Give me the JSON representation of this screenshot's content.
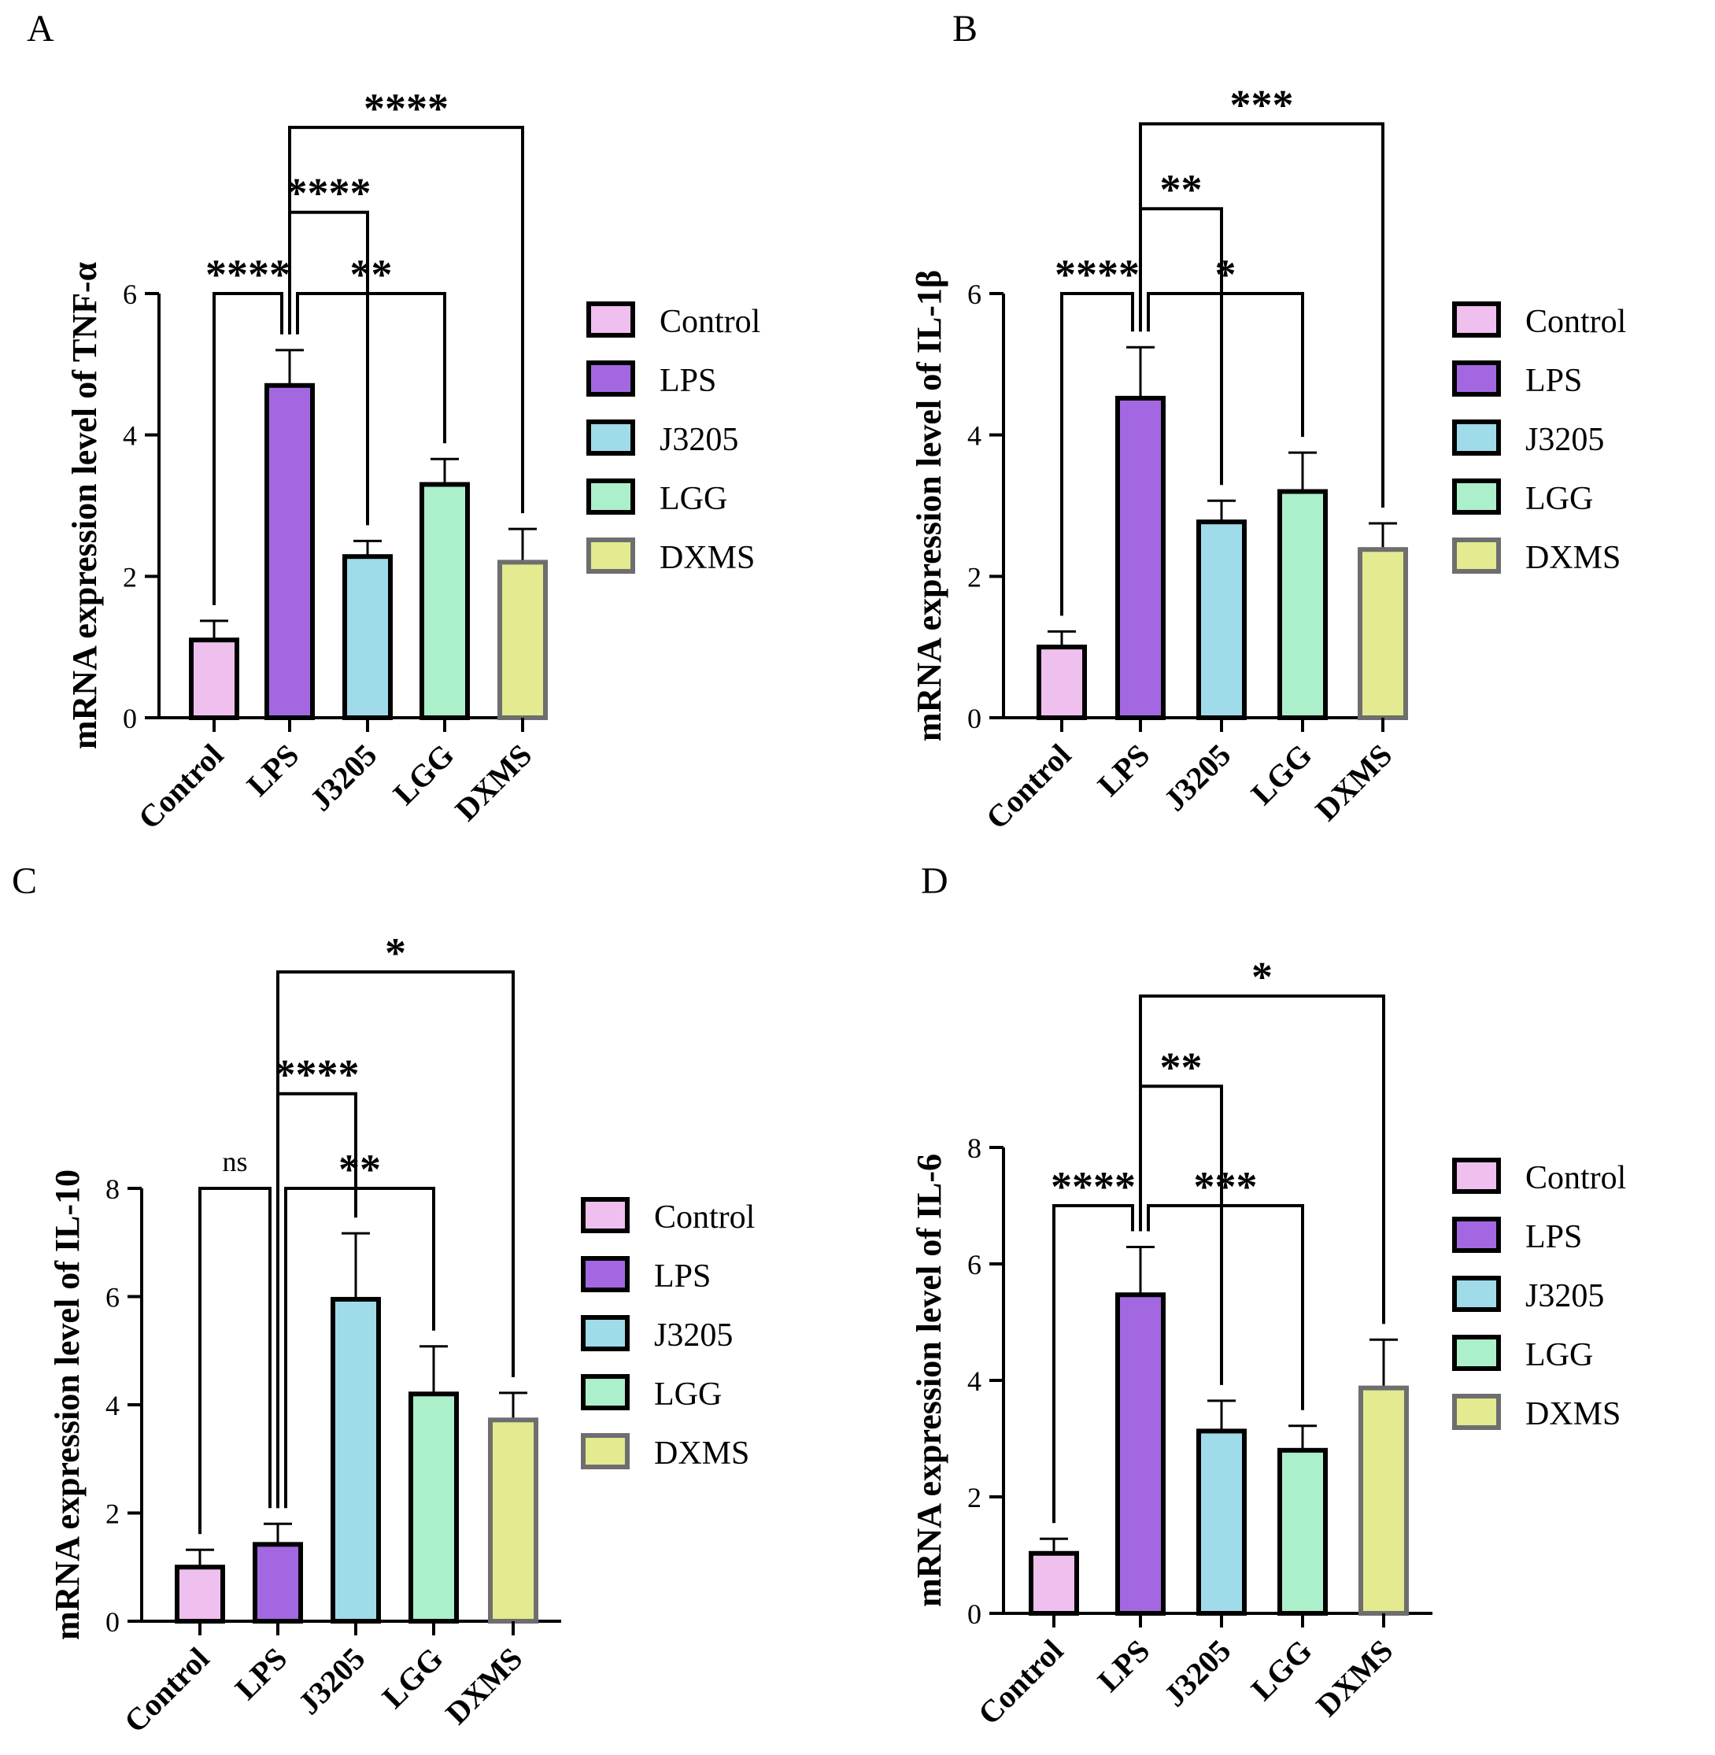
{
  "colors": {
    "Control": "#efbfee",
    "LPS": "#a368e1",
    "J3205": "#9fdbe9",
    "LGG": "#acefcb",
    "DXMS": "#e3ea8f",
    "outline": "#000000",
    "outline_dxms": "#6e6e6e"
  },
  "chart_data": [
    {
      "panel": "A",
      "type": "bar",
      "title": "",
      "xlabel": "",
      "ylabel": "mRNA expression level of TNF-α",
      "ylim": [
        0,
        6
      ],
      "yticks": [
        0,
        2,
        4,
        6
      ],
      "categories": [
        "Control",
        "LPS",
        "J3205",
        "LGG",
        "DXMS"
      ],
      "values": [
        1.1,
        4.7,
        2.28,
        3.3,
        2.2
      ],
      "errors": [
        0.27,
        0.5,
        0.22,
        0.36,
        0.47
      ],
      "legend": [
        "Control",
        "LPS",
        "J3205",
        "LGG",
        "DXMS"
      ],
      "significance": [
        {
          "from": "Control",
          "to": "LPS",
          "label": "****",
          "level": 6.0
        },
        {
          "from": "LPS",
          "to": "LGG",
          "label": "**",
          "level": 6.0
        },
        {
          "from": "LPS",
          "to": "J3205",
          "label": "****",
          "level": 7.15
        },
        {
          "from": "LPS",
          "to": "DXMS",
          "label": "****",
          "level": 8.35
        }
      ]
    },
    {
      "panel": "B",
      "type": "bar",
      "title": "",
      "xlabel": "",
      "ylabel": "mRNA expression level of IL-1β",
      "ylim": [
        0,
        6
      ],
      "yticks": [
        0,
        2,
        4,
        6
      ],
      "categories": [
        "Control",
        "LPS",
        "J3205",
        "LGG",
        "DXMS"
      ],
      "values": [
        1.0,
        4.52,
        2.77,
        3.2,
        2.38
      ],
      "errors": [
        0.22,
        0.72,
        0.3,
        0.55,
        0.37
      ],
      "legend": [
        "Control",
        "LPS",
        "J3205",
        "LGG",
        "DXMS"
      ],
      "significance": [
        {
          "from": "Control",
          "to": "LPS",
          "label": "****",
          "level": 6.0
        },
        {
          "from": "LPS",
          "to": "LGG",
          "label": "*",
          "level": 6.0
        },
        {
          "from": "LPS",
          "to": "J3205",
          "label": "**",
          "level": 7.2
        },
        {
          "from": "LPS",
          "to": "DXMS",
          "label": "***",
          "level": 8.4
        }
      ]
    },
    {
      "panel": "C",
      "type": "bar",
      "title": "",
      "xlabel": "",
      "ylabel": "mRNA expression level of IL-10",
      "ylim": [
        0,
        8
      ],
      "yticks": [
        0,
        2,
        4,
        6,
        8
      ],
      "categories": [
        "Control",
        "LPS",
        "J3205",
        "LGG",
        "DXMS"
      ],
      "values": [
        1.0,
        1.42,
        5.95,
        4.2,
        3.72
      ],
      "errors": [
        0.32,
        0.38,
        1.22,
        0.88,
        0.5
      ],
      "legend": [
        "Control",
        "LPS",
        "J3205",
        "LGG",
        "DXMS"
      ],
      "significance": [
        {
          "from": "Control",
          "to": "LPS",
          "label": "ns",
          "level": 8.0
        },
        {
          "from": "LPS",
          "to": "LGG",
          "label": "**",
          "level": 8.0
        },
        {
          "from": "LPS",
          "to": "J3205",
          "label": "****",
          "level": 9.75
        },
        {
          "from": "LPS",
          "to": "DXMS",
          "label": "*",
          "level": 12.0
        }
      ]
    },
    {
      "panel": "D",
      "type": "bar",
      "title": "",
      "xlabel": "",
      "ylabel": "mRNA expression level of IL-6",
      "ylim": [
        0,
        8
      ],
      "yticks": [
        0,
        2,
        4,
        6,
        8
      ],
      "categories": [
        "Control",
        "LPS",
        "J3205",
        "LGG",
        "DXMS"
      ],
      "values": [
        1.03,
        5.47,
        3.13,
        2.8,
        3.87
      ],
      "errors": [
        0.25,
        0.82,
        0.52,
        0.42,
        0.83
      ],
      "legend": [
        "Control",
        "LPS",
        "J3205",
        "LGG",
        "DXMS"
      ],
      "significance": [
        {
          "from": "Control",
          "to": "LPS",
          "label": "****",
          "level": 7.0
        },
        {
          "from": "LPS",
          "to": "LGG",
          "label": "***",
          "level": 7.0
        },
        {
          "from": "LPS",
          "to": "J3205",
          "label": "**",
          "level": 9.05
        },
        {
          "from": "LPS",
          "to": "DXMS",
          "label": "*",
          "level": 10.6
        }
      ]
    }
  ]
}
